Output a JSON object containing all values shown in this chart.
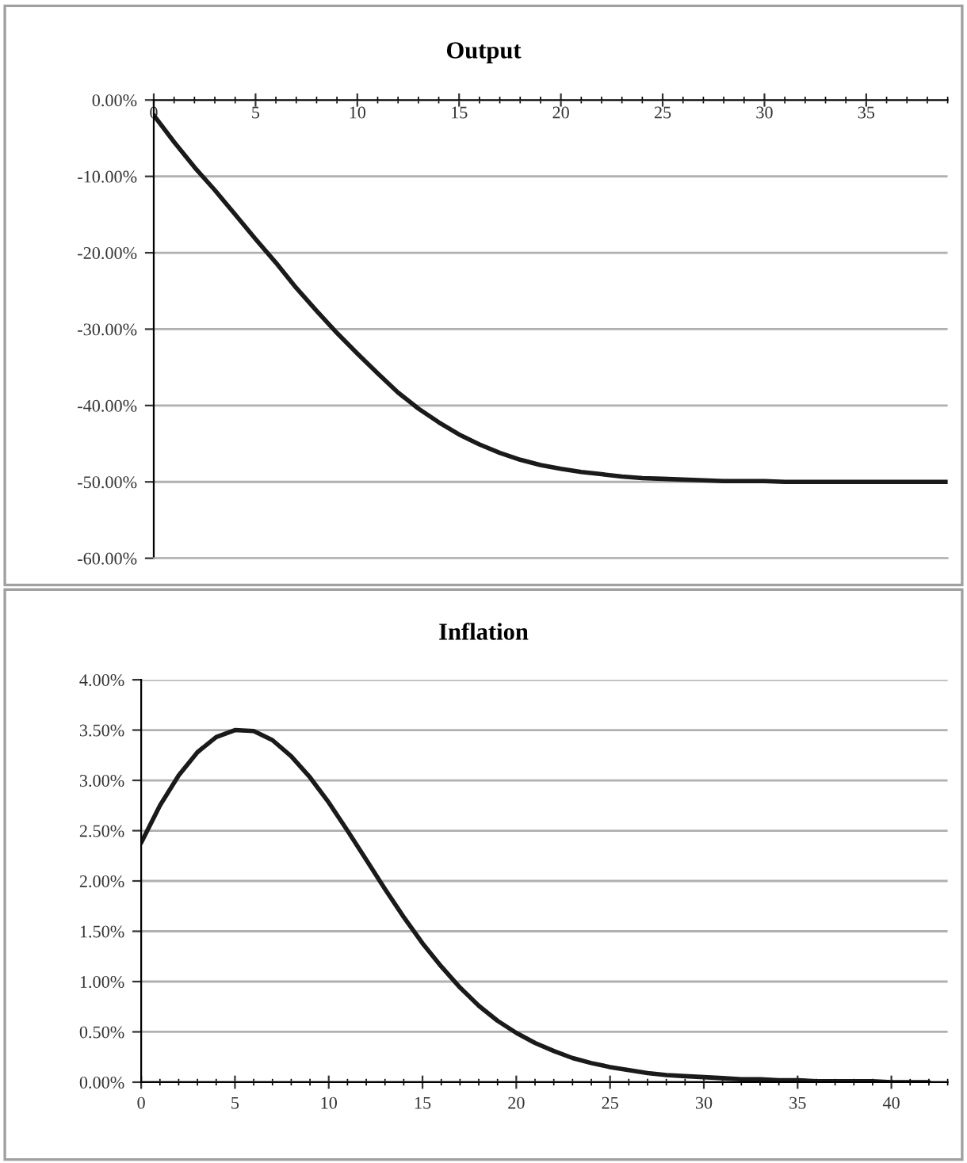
{
  "chart_data": [
    {
      "type": "line",
      "title": "Output",
      "x": [
        0,
        1,
        2,
        3,
        4,
        5,
        6,
        7,
        8,
        9,
        10,
        11,
        12,
        13,
        14,
        15,
        16,
        17,
        18,
        19,
        20,
        21,
        22,
        23,
        24,
        25,
        26,
        27,
        28,
        29,
        30,
        31,
        32,
        33,
        34,
        35,
        36,
        37,
        38,
        39
      ],
      "series": [
        {
          "color": "#1a1a1a",
          "values": [
            -2,
            -5.5,
            -8.8,
            -11.8,
            -15,
            -18.2,
            -21.3,
            -24.6,
            -27.6,
            -30.5,
            -33.2,
            -35.8,
            -38.3,
            -40.4,
            -42.2,
            -43.8,
            -45.1,
            -46.2,
            -47.1,
            -47.8,
            -48.3,
            -48.7,
            -49.0,
            -49.3,
            -49.5,
            -49.6,
            -49.7,
            -49.8,
            -49.9,
            -49.9,
            -49.9,
            -50,
            -50,
            -50,
            -50,
            -50,
            -50,
            -50,
            -50,
            -50
          ]
        }
      ],
      "xlim": [
        0,
        39
      ],
      "xticks": [
        0,
        5,
        10,
        15,
        20,
        25,
        30,
        35
      ],
      "ylim": [
        -60,
        0
      ],
      "yticks": [
        {
          "value": 0,
          "label": "0.00%"
        },
        {
          "value": -10,
          "label": "-10.00%"
        },
        {
          "value": -20,
          "label": "-20.00%"
        },
        {
          "value": -30,
          "label": "-30.00%"
        },
        {
          "value": -40,
          "label": "-40.00%"
        },
        {
          "value": -50,
          "label": "-50.00%"
        },
        {
          "value": -60,
          "label": "-60.00%"
        }
      ],
      "grid": "y",
      "line_style": "solid"
    },
    {
      "type": "line",
      "title": "Inflation",
      "x": [
        0,
        1,
        2,
        3,
        4,
        5,
        6,
        7,
        8,
        9,
        10,
        11,
        12,
        13,
        14,
        15,
        16,
        17,
        18,
        19,
        20,
        21,
        22,
        23,
        24,
        25,
        26,
        27,
        28,
        29,
        30,
        31,
        32,
        33,
        34,
        35,
        36,
        37,
        38,
        39,
        40,
        41,
        42
      ],
      "series": [
        {
          "color": "#1a1a1a",
          "values": [
            2.38,
            2.75,
            3.05,
            3.28,
            3.43,
            3.5,
            3.49,
            3.4,
            3.24,
            3.03,
            2.78,
            2.5,
            2.21,
            1.92,
            1.64,
            1.38,
            1.15,
            0.94,
            0.76,
            0.61,
            0.49,
            0.39,
            0.31,
            0.24,
            0.19,
            0.15,
            0.12,
            0.09,
            0.07,
            0.06,
            0.05,
            0.04,
            0.03,
            0.03,
            0.02,
            0.02,
            0.01,
            0.01,
            0.01,
            0.01,
            0.0,
            0.0,
            0.0
          ]
        }
      ],
      "xlim": [
        0,
        43
      ],
      "xticks": [
        0,
        5,
        10,
        15,
        20,
        25,
        30,
        35,
        40
      ],
      "ylim": [
        0,
        4
      ],
      "yticks": [
        {
          "value": 0,
          "label": "0.00%"
        },
        {
          "value": 0.5,
          "label": "0.50%"
        },
        {
          "value": 1,
          "label": "1.00%"
        },
        {
          "value": 1.5,
          "label": "1.50%"
        },
        {
          "value": 2,
          "label": "2.00%"
        },
        {
          "value": 2.5,
          "label": "2.50%"
        },
        {
          "value": 3,
          "label": "3.00%"
        },
        {
          "value": 3.5,
          "label": "3.50%"
        },
        {
          "value": 4,
          "label": "4.00%"
        }
      ],
      "grid": "y",
      "line_style": "solid"
    }
  ]
}
